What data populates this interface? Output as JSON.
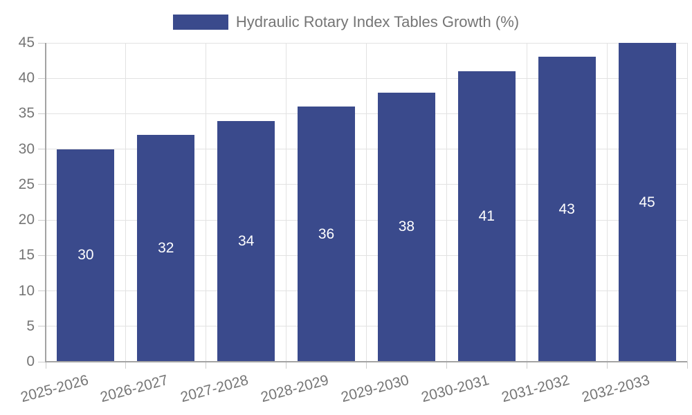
{
  "legend": {
    "label": "Hydraulic Rotary Index Tables Growth (%)"
  },
  "chart_data": {
    "type": "bar",
    "title": "Hydraulic Rotary Index Tables Growth (%)",
    "categories": [
      "2025-2026",
      "2026-2027",
      "2027-2028",
      "2028-2029",
      "2029-2030",
      "2030-2031",
      "2031-2032",
      "2032-2033"
    ],
    "values": [
      30,
      32,
      34,
      36,
      38,
      41,
      43,
      45
    ],
    "xlabel": "",
    "ylabel": "",
    "ylim": [
      0,
      45
    ],
    "ytick_step": 5,
    "yticks": [
      0,
      5,
      10,
      15,
      20,
      25,
      30,
      35,
      40,
      45
    ],
    "grid": true,
    "legend_position": "top-center",
    "value_labels_position": "inside-middle",
    "x_tick_rotation_deg": -15,
    "colors": {
      "bar": "#3a4a8c",
      "axis_text": "#757575",
      "value_label_text": "#ffffff",
      "gridline": "#e2e2e2",
      "axis_line": "#a3a3a3",
      "tick": "#cccccc"
    }
  }
}
